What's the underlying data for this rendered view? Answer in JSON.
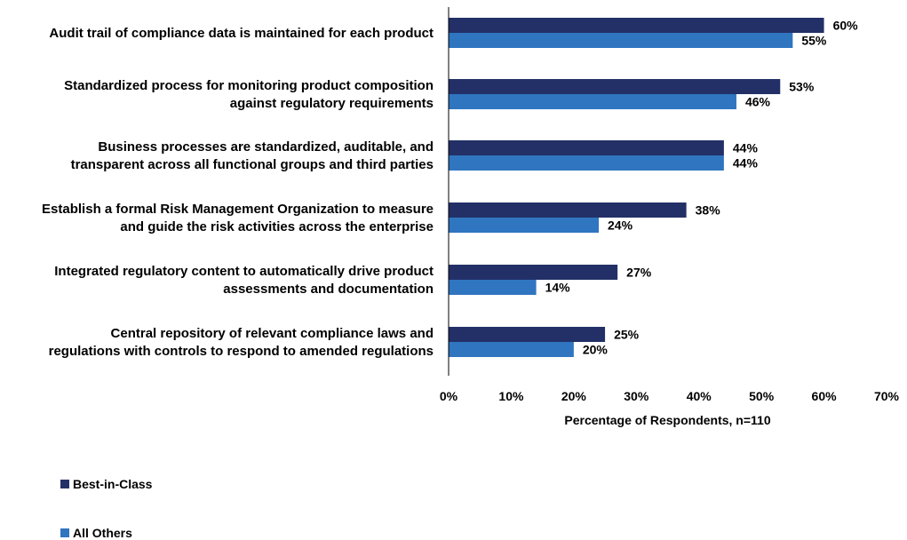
{
  "chart_data": {
    "type": "bar",
    "orientation": "horizontal",
    "categories": [
      [
        "Audit trail of compliance data is maintained for each product"
      ],
      [
        "Standardized process for monitoring product composition",
        "against regulatory requirements"
      ],
      [
        "Business processes are standardized, auditable, and",
        "transparent across all functional groups and third parties"
      ],
      [
        "Establish a formal Risk Management Organization to measure",
        "and guide the risk activities across the enterprise"
      ],
      [
        "Integrated regulatory content to automatically drive product",
        "assessments and documentation"
      ],
      [
        "Central repository of relevant compliance laws and",
        "regulations with controls to respond to amended regulations"
      ]
    ],
    "series": [
      {
        "name": "Best-in-Class",
        "color": "#233067",
        "values": [
          60,
          53,
          44,
          38,
          27,
          25
        ]
      },
      {
        "name": "All Others",
        "color": "#2f75c0",
        "values": [
          55,
          46,
          44,
          24,
          14,
          20
        ]
      }
    ],
    "value_suffix": "%",
    "xlim": [
      0,
      70
    ],
    "xticks": [
      "0%",
      "10%",
      "20%",
      "30%",
      "40%",
      "50%",
      "60%",
      "70%"
    ],
    "xlabel": "Percentage of Respondents, n=110",
    "grid": false,
    "legend_position": "bottom-left"
  }
}
